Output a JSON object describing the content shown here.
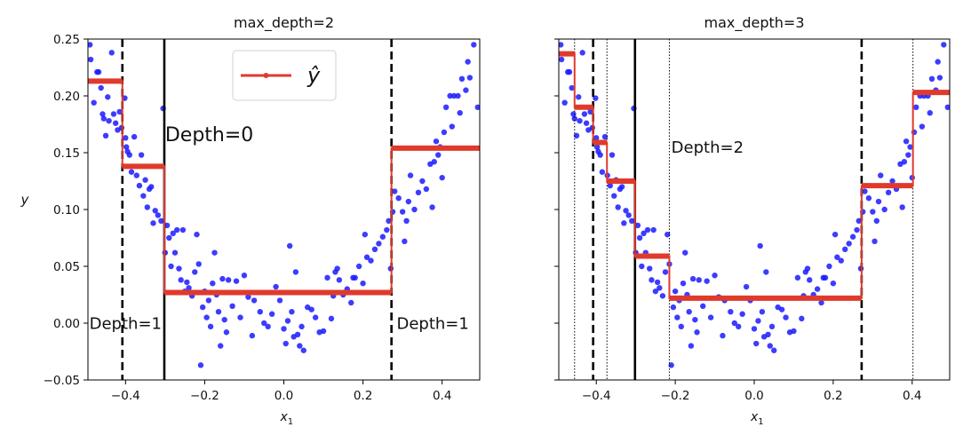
{
  "chart_data": [
    {
      "type": "scatter+step",
      "title": "max_depth=2",
      "xlabel": "x1",
      "ylabel": "y",
      "xlim": [
        -0.495,
        0.495
      ],
      "ylim": [
        -0.05,
        0.25
      ],
      "xticks": [
        -0.4,
        -0.2,
        0.0,
        0.2,
        0.4
      ],
      "xtick_labels": [
        "−0.4",
        "−0.2",
        "0.0",
        "0.2",
        "0.4"
      ],
      "yticks": [
        -0.05,
        0.0,
        0.05,
        0.1,
        0.15,
        0.2,
        0.25
      ],
      "ytick_labels": [
        "−0.05",
        "0.00",
        "0.05",
        "0.10",
        "0.15",
        "0.20",
        "0.25"
      ],
      "legend": {
        "label": "ŷ",
        "placement": "upper-center"
      },
      "splits": [
        {
          "x": -0.302,
          "style": "solid"
        },
        {
          "x": -0.408,
          "style": "dashed"
        },
        {
          "x": 0.272,
          "style": "dashed"
        }
      ],
      "steps": [
        {
          "x0": -0.495,
          "x1": -0.408,
          "y": 0.213
        },
        {
          "x0": -0.408,
          "x1": -0.302,
          "y": 0.138
        },
        {
          "x0": -0.302,
          "x1": 0.272,
          "y": 0.027
        },
        {
          "x0": 0.272,
          "x1": 0.495,
          "y": 0.154
        }
      ],
      "annotations": [
        {
          "text": "Depth=0",
          "x": -0.3,
          "y": 0.16,
          "size": "large"
        },
        {
          "text": "Depth=1",
          "x": -0.4,
          "y": -0.005,
          "size": "medium",
          "anchor": "middle"
        },
        {
          "text": "Depth=1",
          "x": 0.285,
          "y": -0.005,
          "size": "medium"
        }
      ]
    },
    {
      "type": "scatter+step",
      "title": "max_depth=3",
      "xlabel": "x1",
      "ylabel": "",
      "xlim": [
        -0.495,
        0.495
      ],
      "ylim": [
        -0.05,
        0.25
      ],
      "xticks": [
        -0.4,
        -0.2,
        0.0,
        0.2,
        0.4
      ],
      "xtick_labels": [
        "−0.4",
        "−0.2",
        "0.0",
        "0.2",
        "0.4"
      ],
      "yticks": [
        -0.05,
        0.0,
        0.05,
        0.1,
        0.15,
        0.2,
        0.25
      ],
      "ytick_labels": [],
      "splits": [
        {
          "x": -0.302,
          "style": "solid"
        },
        {
          "x": -0.408,
          "style": "dashed"
        },
        {
          "x": 0.272,
          "style": "dashed"
        },
        {
          "x": -0.455,
          "style": "dotted"
        },
        {
          "x": -0.373,
          "style": "dotted"
        },
        {
          "x": -0.215,
          "style": "dotted"
        },
        {
          "x": 0.402,
          "style": "dotted"
        }
      ],
      "steps": [
        {
          "x0": -0.495,
          "x1": -0.455,
          "y": 0.237
        },
        {
          "x0": -0.455,
          "x1": -0.408,
          "y": 0.19
        },
        {
          "x0": -0.408,
          "x1": -0.373,
          "y": 0.159
        },
        {
          "x0": -0.373,
          "x1": -0.302,
          "y": 0.125
        },
        {
          "x0": -0.302,
          "x1": -0.215,
          "y": 0.059
        },
        {
          "x0": -0.215,
          "x1": 0.272,
          "y": 0.022
        },
        {
          "x0": 0.272,
          "x1": 0.402,
          "y": 0.121
        },
        {
          "x0": 0.402,
          "x1": 0.495,
          "y": 0.203
        }
      ],
      "annotations": [
        {
          "text": "Depth=2",
          "x": -0.21,
          "y": 0.15,
          "size": "medium"
        }
      ]
    }
  ],
  "points": [
    [
      -0.49,
      0.245
    ],
    [
      -0.488,
      0.232
    ],
    [
      -0.48,
      0.194
    ],
    [
      -0.472,
      0.221
    ],
    [
      -0.468,
      0.221
    ],
    [
      -0.462,
      0.207
    ],
    [
      -0.458,
      0.184
    ],
    [
      -0.455,
      0.18
    ],
    [
      -0.45,
      0.165
    ],
    [
      -0.445,
      0.199
    ],
    [
      -0.442,
      0.178
    ],
    [
      -0.435,
      0.238
    ],
    [
      -0.43,
      0.184
    ],
    [
      -0.425,
      0.176
    ],
    [
      -0.42,
      0.17
    ],
    [
      -0.415,
      0.186
    ],
    [
      -0.41,
      0.172
    ],
    [
      -0.402,
      0.198
    ],
    [
      -0.4,
      0.163
    ],
    [
      -0.398,
      0.155
    ],
    [
      -0.395,
      0.151
    ],
    [
      -0.39,
      0.148
    ],
    [
      -0.385,
      0.133
    ],
    [
      -0.378,
      0.164
    ],
    [
      -0.372,
      0.13
    ],
    [
      -0.365,
      0.121
    ],
    [
      -0.36,
      0.148
    ],
    [
      -0.355,
      0.112
    ],
    [
      -0.35,
      0.126
    ],
    [
      -0.345,
      0.102
    ],
    [
      -0.34,
      0.118
    ],
    [
      -0.335,
      0.12
    ],
    [
      -0.33,
      0.088
    ],
    [
      -0.325,
      0.099
    ],
    [
      -0.318,
      0.095
    ],
    [
      -0.31,
      0.09
    ],
    [
      -0.305,
      0.189
    ],
    [
      -0.3,
      0.062
    ],
    [
      -0.295,
      0.086
    ],
    [
      -0.29,
      0.075
    ],
    [
      -0.285,
      0.05
    ],
    [
      -0.28,
      0.079
    ],
    [
      -0.275,
      0.062
    ],
    [
      -0.27,
      0.082
    ],
    [
      -0.265,
      0.048
    ],
    [
      -0.26,
      0.038
    ],
    [
      -0.255,
      0.082
    ],
    [
      -0.25,
      0.028
    ],
    [
      -0.245,
      0.036
    ],
    [
      -0.24,
      0.031
    ],
    [
      -0.232,
      0.024
    ],
    [
      -0.225,
      0.045
    ],
    [
      -0.22,
      0.078
    ],
    [
      -0.215,
      0.052
    ],
    [
      -0.21,
      -0.037
    ],
    [
      -0.205,
      0.014
    ],
    [
      -0.2,
      0.028
    ],
    [
      -0.195,
      0.005
    ],
    [
      -0.19,
      0.02
    ],
    [
      -0.185,
      -0.003
    ],
    [
      -0.18,
      0.035
    ],
    [
      -0.175,
      0.062
    ],
    [
      -0.17,
      0.025
    ],
    [
      -0.165,
      0.01
    ],
    [
      -0.16,
      -0.02
    ],
    [
      -0.155,
      0.039
    ],
    [
      -0.15,
      0.003
    ],
    [
      -0.145,
      -0.008
    ],
    [
      -0.14,
      0.038
    ],
    [
      -0.13,
      0.015
    ],
    [
      -0.12,
      0.037
    ],
    [
      -0.11,
      0.005
    ],
    [
      -0.1,
      0.042
    ],
    [
      -0.09,
      0.023
    ],
    [
      -0.08,
      -0.011
    ],
    [
      -0.075,
      0.02
    ],
    [
      -0.06,
      0.01
    ],
    [
      -0.05,
      0.0
    ],
    [
      -0.04,
      -0.003
    ],
    [
      -0.03,
      0.008
    ],
    [
      -0.02,
      0.032
    ],
    [
      -0.01,
      0.02
    ],
    [
      0.0,
      -0.005
    ],
    [
      0.005,
      -0.018
    ],
    [
      0.01,
      0.002
    ],
    [
      0.015,
      0.068
    ],
    [
      0.02,
      0.01
    ],
    [
      0.025,
      -0.012
    ],
    [
      0.03,
      0.045
    ],
    [
      0.035,
      -0.01
    ],
    [
      0.04,
      -0.02
    ],
    [
      0.045,
      -0.003
    ],
    [
      0.05,
      -0.024
    ],
    [
      0.06,
      0.014
    ],
    [
      0.07,
      0.012
    ],
    [
      0.08,
      0.005
    ],
    [
      0.09,
      -0.008
    ],
    [
      0.1,
      -0.007
    ],
    [
      0.11,
      0.04
    ],
    [
      0.12,
      0.004
    ],
    [
      0.125,
      0.024
    ],
    [
      0.13,
      0.045
    ],
    [
      0.135,
      0.048
    ],
    [
      0.14,
      0.038
    ],
    [
      0.15,
      0.025
    ],
    [
      0.16,
      0.03
    ],
    [
      0.17,
      0.018
    ],
    [
      0.175,
      0.04
    ],
    [
      0.18,
      0.04
    ],
    [
      0.19,
      0.05
    ],
    [
      0.2,
      0.035
    ],
    [
      0.205,
      0.078
    ],
    [
      0.21,
      0.058
    ],
    [
      0.22,
      0.055
    ],
    [
      0.23,
      0.065
    ],
    [
      0.24,
      0.07
    ],
    [
      0.25,
      0.076
    ],
    [
      0.26,
      0.082
    ],
    [
      0.265,
      0.09
    ],
    [
      0.27,
      0.048
    ],
    [
      0.275,
      0.098
    ],
    [
      0.28,
      0.116
    ],
    [
      0.29,
      0.11
    ],
    [
      0.3,
      0.098
    ],
    [
      0.305,
      0.072
    ],
    [
      0.31,
      0.09
    ],
    [
      0.315,
      0.107
    ],
    [
      0.32,
      0.13
    ],
    [
      0.33,
      0.1
    ],
    [
      0.34,
      0.115
    ],
    [
      0.35,
      0.125
    ],
    [
      0.36,
      0.118
    ],
    [
      0.37,
      0.14
    ],
    [
      0.375,
      0.102
    ],
    [
      0.38,
      0.142
    ],
    [
      0.385,
      0.16
    ],
    [
      0.39,
      0.148
    ],
    [
      0.395,
      0.155
    ],
    [
      0.4,
      0.128
    ],
    [
      0.405,
      0.168
    ],
    [
      0.41,
      0.19
    ],
    [
      0.42,
      0.2
    ],
    [
      0.425,
      0.173
    ],
    [
      0.43,
      0.2
    ],
    [
      0.44,
      0.2
    ],
    [
      0.445,
      0.185
    ],
    [
      0.45,
      0.215
    ],
    [
      0.46,
      0.205
    ],
    [
      0.465,
      0.23
    ],
    [
      0.47,
      0.216
    ],
    [
      0.48,
      0.245
    ],
    [
      0.49,
      0.19
    ]
  ],
  "colors": {
    "points": "#1a1aff",
    "step": "#e03a2c",
    "split": "#000000"
  }
}
